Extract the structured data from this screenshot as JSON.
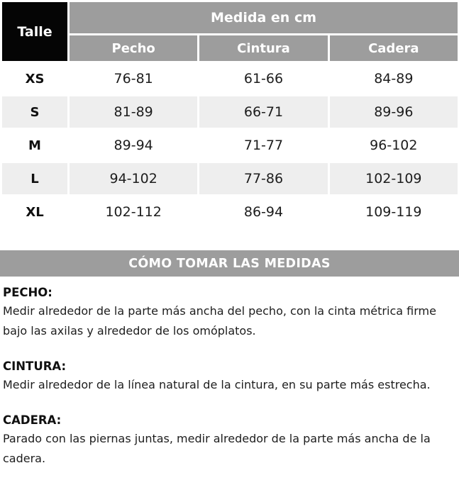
{
  "size_table": {
    "corner_label": "Talle",
    "group_header": "Medida en cm",
    "columns": [
      "Pecho",
      "Cintura",
      "Cadera"
    ],
    "rows": [
      [
        "XS",
        "76-81",
        "61-66",
        "84-89"
      ],
      [
        "S",
        "81-89",
        "66-71",
        "89-96"
      ],
      [
        "M",
        "89-94",
        "71-77",
        "96-102"
      ],
      [
        "L",
        "94-102",
        "77-86",
        "102-109"
      ],
      [
        "XL",
        "102-112",
        "86-94",
        "109-119"
      ]
    ]
  },
  "instructions": {
    "banner": "CÓMO TOMAR LAS MEDIDAS",
    "sections": [
      {
        "title": "PECHO:",
        "text": "Medir alrededor de la parte más ancha del pecho, con la cinta métrica firme bajo las axilas y alrededor de los omóplatos."
      },
      {
        "title": "CINTURA:",
        "text": "Medir alrededor de la línea natural de la cintura, en su parte más estrecha."
      },
      {
        "title": "CADERA:",
        "text": "Parado con las piernas juntas, medir alrededor de la parte más ancha de la cadera."
      }
    ]
  },
  "colors": {
    "header_gray": "#9d9d9d",
    "corner_black": "#050505",
    "row_stripe": "#eeeeee",
    "header_text": "#ffffff",
    "body_text": "#1d1d1d"
  }
}
